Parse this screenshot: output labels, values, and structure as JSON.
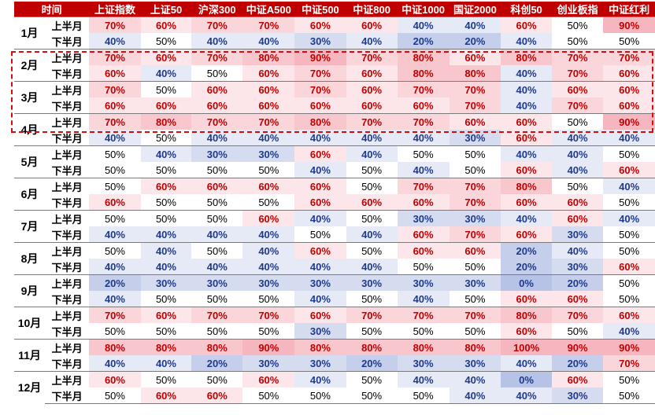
{
  "chart_data": {
    "type": "heatmap",
    "corner_label": "时间",
    "columns": [
      "上证指数",
      "上证50",
      "沪深300",
      "中证A500",
      "中证500",
      "中证800",
      "中证1000",
      "国证2000",
      "科创50",
      "创业板指",
      "中证红利"
    ],
    "half_labels": [
      "上半月",
      "下半月"
    ],
    "months": [
      {
        "month": "1月",
        "rows": [
          [
            70,
            60,
            70,
            70,
            60,
            60,
            40,
            40,
            60,
            50,
            90
          ],
          [
            40,
            50,
            40,
            40,
            30,
            40,
            20,
            20,
            40,
            50,
            50
          ]
        ]
      },
      {
        "month": "2月",
        "rows": [
          [
            70,
            60,
            70,
            80,
            90,
            70,
            80,
            60,
            80,
            70,
            70
          ],
          [
            60,
            40,
            50,
            60,
            70,
            60,
            80,
            80,
            40,
            70,
            60
          ]
        ]
      },
      {
        "month": "3月",
        "rows": [
          [
            70,
            50,
            60,
            60,
            70,
            60,
            70,
            70,
            40,
            60,
            60
          ],
          [
            60,
            60,
            60,
            60,
            60,
            60,
            60,
            70,
            40,
            70,
            60
          ]
        ]
      },
      {
        "month": "4月",
        "rows": [
          [
            70,
            80,
            70,
            70,
            80,
            70,
            70,
            60,
            60,
            50,
            90
          ],
          [
            40,
            50,
            40,
            40,
            40,
            40,
            40,
            30,
            60,
            40,
            40
          ]
        ]
      },
      {
        "month": "5月",
        "rows": [
          [
            50,
            40,
            30,
            30,
            60,
            40,
            50,
            50,
            40,
            40,
            50
          ],
          [
            50,
            50,
            50,
            50,
            40,
            50,
            40,
            50,
            60,
            40,
            60
          ]
        ]
      },
      {
        "month": "6月",
        "rows": [
          [
            50,
            60,
            60,
            60,
            60,
            50,
            70,
            70,
            80,
            50,
            40
          ],
          [
            60,
            50,
            50,
            50,
            60,
            60,
            60,
            70,
            60,
            60,
            50
          ]
        ]
      },
      {
        "month": "7月",
        "rows": [
          [
            50,
            50,
            50,
            60,
            40,
            50,
            30,
            30,
            40,
            60,
            40
          ],
          [
            40,
            40,
            40,
            40,
            50,
            40,
            60,
            70,
            60,
            30,
            50
          ]
        ]
      },
      {
        "month": "8月",
        "rows": [
          [
            50,
            40,
            50,
            40,
            60,
            50,
            60,
            60,
            20,
            40,
            50
          ],
          [
            40,
            40,
            40,
            40,
            40,
            40,
            50,
            50,
            20,
            30,
            60
          ]
        ]
      },
      {
        "month": "9月",
        "rows": [
          [
            20,
            30,
            30,
            30,
            30,
            30,
            30,
            30,
            0,
            20,
            50
          ],
          [
            40,
            50,
            50,
            50,
            40,
            50,
            40,
            50,
            60,
            60,
            50
          ]
        ]
      },
      {
        "month": "10月",
        "rows": [
          [
            70,
            60,
            70,
            70,
            60,
            70,
            70,
            70,
            80,
            70,
            60
          ],
          [
            50,
            50,
            50,
            50,
            30,
            50,
            50,
            50,
            60,
            50,
            40
          ]
        ]
      },
      {
        "month": "11月",
        "rows": [
          [
            80,
            80,
            80,
            90,
            80,
            80,
            80,
            80,
            100,
            90,
            90
          ],
          [
            40,
            40,
            20,
            30,
            30,
            20,
            30,
            30,
            40,
            20,
            70
          ]
        ]
      },
      {
        "month": "12月",
        "rows": [
          [
            60,
            50,
            50,
            60,
            40,
            50,
            40,
            40,
            0,
            60,
            50
          ],
          [
            50,
            60,
            60,
            50,
            50,
            50,
            50,
            40,
            40,
            30,
            50
          ]
        ]
      }
    ],
    "value_format": "percent",
    "highlight_months": [
      "2月",
      "3月",
      "4月上半月"
    ],
    "colors": {
      "header_bg": "#c00000",
      "high_text": "#c00000",
      "low_text": "#1f3a8a",
      "neutral_text": "#000000",
      "dash_border": "#d01010"
    }
  }
}
